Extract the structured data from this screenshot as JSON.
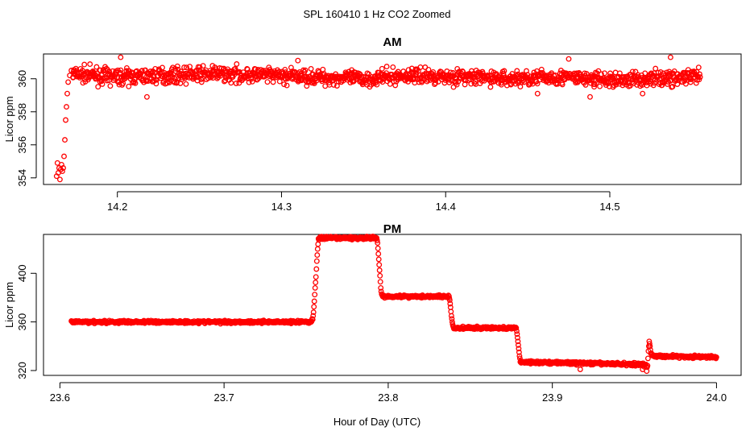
{
  "figure": {
    "title": "SPL  160410  1 Hz CO2 Zoomed",
    "xlabel": "Hour of Day (UTC)"
  },
  "chart_data": [
    {
      "type": "scatter",
      "title": "AM",
      "xlabel": "",
      "ylabel": "Licor ppm",
      "xlim": [
        14.155,
        14.58
      ],
      "ylim": [
        353.6,
        361.5
      ],
      "xticks": [
        "14.2",
        "14.3",
        "14.4",
        "14.5"
      ],
      "yticks": [
        "354",
        "356",
        "358",
        "360"
      ],
      "grid": false,
      "marker": "open-circle",
      "color": "#ff0000",
      "series": [
        {
          "points": [
            [
              14.163,
              354.1
            ],
            [
              14.1635,
              354.9
            ],
            [
              14.164,
              354.3
            ],
            [
              14.1645,
              354.6
            ],
            [
              14.165,
              353.9
            ],
            [
              14.1655,
              354.5
            ],
            [
              14.166,
              354.8
            ],
            [
              14.1665,
              354.4
            ],
            [
              14.167,
              354.6
            ],
            [
              14.1675,
              355.3
            ],
            [
              14.168,
              356.3
            ],
            [
              14.1685,
              357.5
            ],
            [
              14.169,
              358.3
            ],
            [
              14.1695,
              359.1
            ],
            [
              14.17,
              359.8
            ],
            [
              14.171,
              360.2
            ],
            [
              14.172,
              360.5
            ],
            [
              14.173,
              360.1
            ]
          ]
        },
        {
          "segments": [
            [
              14.173,
              360.3
            ],
            [
              14.2,
              360.1
            ],
            [
              14.23,
              360.2
            ],
            [
              14.26,
              360.3
            ],
            [
              14.29,
              360.2
            ],
            [
              14.32,
              360.1
            ],
            [
              14.35,
              360.0
            ],
            [
              14.38,
              360.2
            ],
            [
              14.41,
              360.1
            ],
            [
              14.44,
              360.0
            ],
            [
              14.47,
              360.1
            ],
            [
              14.5,
              359.9
            ],
            [
              14.52,
              360.0
            ],
            [
              14.555,
              360.1
            ]
          ],
          "noise": 0.45,
          "note_outliers": [
            [
              14.202,
              361.3
            ],
            [
              14.218,
              358.9
            ],
            [
              14.31,
              361.1
            ],
            [
              14.456,
              359.1
            ],
            [
              14.475,
              361.2
            ],
            [
              14.52,
              359.1
            ],
            [
              14.537,
              361.3
            ],
            [
              14.488,
              358.9
            ]
          ]
        }
      ]
    },
    {
      "type": "scatter",
      "title": "PM",
      "xlabel": "",
      "ylabel": "Licor ppm",
      "xlim": [
        23.59,
        24.015
      ],
      "ylim": [
        316,
        432
      ],
      "xticks": [
        "23.6",
        "23.7",
        "23.8",
        "23.9",
        "24.0"
      ],
      "yticks": [
        "320",
        "360",
        "400"
      ],
      "grid": false,
      "marker": "open-circle",
      "color": "#ff0000",
      "series": [
        {
          "segments": [
            [
              23.607,
              360.0
            ],
            [
              23.753,
              360.0
            ],
            [
              23.754,
              362
            ],
            [
              23.7545,
              368
            ],
            [
              23.755,
              377
            ],
            [
              23.7555,
              388
            ],
            [
              23.756,
              397
            ],
            [
              23.7565,
              410
            ],
            [
              23.757,
              420
            ],
            [
              23.7575,
              428
            ],
            [
              23.758,
              429.0
            ],
            [
              23.793,
              429.0
            ],
            [
              23.7935,
              425
            ],
            [
              23.794,
              416
            ],
            [
              23.7945,
              407
            ],
            [
              23.795,
              398
            ],
            [
              23.7955,
              388
            ],
            [
              23.796,
              382
            ],
            [
              23.797,
              381.0
            ],
            [
              23.837,
              381.0
            ],
            [
              23.8375,
              378
            ],
            [
              23.838,
              372
            ],
            [
              23.8385,
              365
            ],
            [
              23.839,
              360
            ],
            [
              23.8395,
              356
            ],
            [
              23.84,
              355.0
            ],
            [
              23.878,
              355.0
            ],
            [
              23.8785,
              350
            ],
            [
              23.879,
              344
            ],
            [
              23.8795,
              338
            ],
            [
              23.88,
              332
            ],
            [
              23.8805,
              328
            ],
            [
              23.881,
              327.0
            ],
            [
              23.957,
              325.0
            ],
            [
              23.9575,
              321
            ],
            [
              23.958,
              324
            ],
            [
              23.9585,
              336
            ],
            [
              23.959,
              344
            ],
            [
              23.9595,
              340
            ],
            [
              23.96,
              334
            ],
            [
              23.961,
              332.0
            ],
            [
              24.0,
              331.0
            ]
          ],
          "noise": 1.1,
          "note_outliers": [
            [
              23.917,
              321
            ],
            [
              23.955,
              321
            ],
            [
              23.956,
              323
            ]
          ]
        }
      ]
    }
  ]
}
